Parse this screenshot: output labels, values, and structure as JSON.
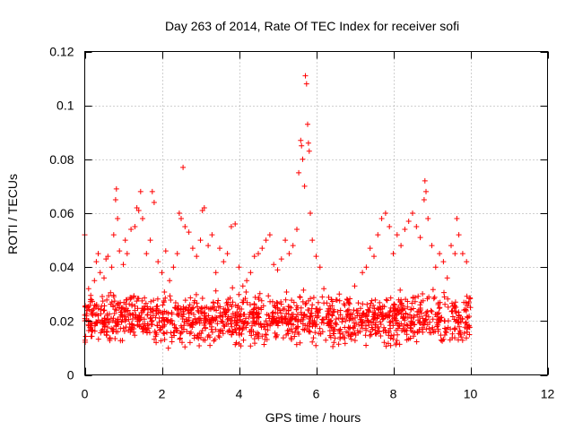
{
  "chart_data": {
    "type": "scatter",
    "title": "Day 263 of 2014, Rate Of TEC Index for receiver sofi",
    "xlabel": "GPS time / hours",
    "ylabel": "ROTI / TECUs",
    "xlim": [
      0,
      12
    ],
    "ylim": [
      0,
      0.12
    ],
    "x_ticks": [
      0,
      2,
      4,
      6,
      8,
      10,
      12
    ],
    "x_tick_labels": [
      "0",
      "2",
      "4",
      "6",
      "8",
      "10",
      "12"
    ],
    "y_ticks": [
      0,
      0.02,
      0.04,
      0.06,
      0.08,
      0.1,
      0.12
    ],
    "y_tick_labels": [
      "0",
      "0.02",
      "0.04",
      "0.06",
      "0.08",
      "0.1",
      "0.12"
    ],
    "grid": true,
    "marker": "+",
    "color": "#ff0000",
    "dense_band": {
      "x_range": [
        0,
        10
      ],
      "y_typical": [
        0.008,
        0.035
      ]
    },
    "series": [
      {
        "name": "ROTI",
        "points": [
          [
            0.0,
            0.052
          ],
          [
            0.05,
            0.025
          ],
          [
            0.1,
            0.032
          ],
          [
            0.15,
            0.028
          ],
          [
            0.2,
            0.024
          ],
          [
            0.25,
            0.035
          ],
          [
            0.3,
            0.042
          ],
          [
            0.35,
            0.045
          ],
          [
            0.4,
            0.038
          ],
          [
            0.5,
            0.036
          ],
          [
            0.55,
            0.043
          ],
          [
            0.6,
            0.044
          ],
          [
            0.7,
            0.04
          ],
          [
            0.75,
            0.052
          ],
          [
            0.8,
            0.065
          ],
          [
            0.82,
            0.069
          ],
          [
            0.85,
            0.058
          ],
          [
            0.9,
            0.046
          ],
          [
            1.0,
            0.041
          ],
          [
            1.05,
            0.05
          ],
          [
            1.1,
            0.045
          ],
          [
            1.2,
            0.054
          ],
          [
            1.3,
            0.055
          ],
          [
            1.35,
            0.062
          ],
          [
            1.4,
            0.061
          ],
          [
            1.45,
            0.068
          ],
          [
            1.5,
            0.058
          ],
          [
            1.6,
            0.045
          ],
          [
            1.7,
            0.05
          ],
          [
            1.75,
            0.068
          ],
          [
            1.8,
            0.064
          ],
          [
            1.9,
            0.042
          ],
          [
            2.0,
            0.038
          ],
          [
            2.1,
            0.046
          ],
          [
            2.2,
            0.035
          ],
          [
            2.3,
            0.04
          ],
          [
            2.4,
            0.045
          ],
          [
            2.45,
            0.06
          ],
          [
            2.5,
            0.058
          ],
          [
            2.55,
            0.077
          ],
          [
            2.6,
            0.055
          ],
          [
            2.7,
            0.053
          ],
          [
            2.8,
            0.047
          ],
          [
            2.9,
            0.044
          ],
          [
            3.0,
            0.05
          ],
          [
            3.05,
            0.061
          ],
          [
            3.1,
            0.062
          ],
          [
            3.2,
            0.048
          ],
          [
            3.3,
            0.052
          ],
          [
            3.4,
            0.038
          ],
          [
            3.5,
            0.047
          ],
          [
            3.6,
            0.042
          ],
          [
            3.7,
            0.045
          ],
          [
            3.8,
            0.055
          ],
          [
            3.9,
            0.056
          ],
          [
            4.0,
            0.04
          ],
          [
            4.1,
            0.033
          ],
          [
            4.2,
            0.035
          ],
          [
            4.3,
            0.038
          ],
          [
            4.4,
            0.044
          ],
          [
            4.5,
            0.045
          ],
          [
            4.6,
            0.047
          ],
          [
            4.7,
            0.05
          ],
          [
            4.8,
            0.052
          ],
          [
            4.9,
            0.041
          ],
          [
            5.0,
            0.039
          ],
          [
            5.1,
            0.043
          ],
          [
            5.2,
            0.05
          ],
          [
            5.3,
            0.045
          ],
          [
            5.4,
            0.048
          ],
          [
            5.5,
            0.054
          ],
          [
            5.55,
            0.075
          ],
          [
            5.6,
            0.087
          ],
          [
            5.62,
            0.085
          ],
          [
            5.65,
            0.08
          ],
          [
            5.7,
            0.07
          ],
          [
            5.72,
            0.111
          ],
          [
            5.75,
            0.108
          ],
          [
            5.78,
            0.093
          ],
          [
            5.8,
            0.086
          ],
          [
            5.82,
            0.083
          ],
          [
            5.85,
            0.06
          ],
          [
            5.9,
            0.05
          ],
          [
            6.0,
            0.044
          ],
          [
            6.1,
            0.04
          ],
          [
            6.2,
            0.032
          ],
          [
            6.4,
            0.028
          ],
          [
            6.6,
            0.03
          ],
          [
            6.8,
            0.028
          ],
          [
            7.0,
            0.033
          ],
          [
            7.2,
            0.038
          ],
          [
            7.3,
            0.04
          ],
          [
            7.4,
            0.047
          ],
          [
            7.5,
            0.044
          ],
          [
            7.6,
            0.052
          ],
          [
            7.7,
            0.058
          ],
          [
            7.8,
            0.06
          ],
          [
            7.9,
            0.055
          ],
          [
            8.0,
            0.045
          ],
          [
            8.1,
            0.052
          ],
          [
            8.2,
            0.048
          ],
          [
            8.3,
            0.054
          ],
          [
            8.4,
            0.057
          ],
          [
            8.5,
            0.06
          ],
          [
            8.6,
            0.055
          ],
          [
            8.7,
            0.051
          ],
          [
            8.8,
            0.065
          ],
          [
            8.82,
            0.072
          ],
          [
            8.85,
            0.068
          ],
          [
            8.9,
            0.058
          ],
          [
            9.0,
            0.048
          ],
          [
            9.1,
            0.04
          ],
          [
            9.2,
            0.045
          ],
          [
            9.3,
            0.042
          ],
          [
            9.4,
            0.036
          ],
          [
            9.5,
            0.048
          ],
          [
            9.6,
            0.045
          ],
          [
            9.65,
            0.058
          ],
          [
            9.7,
            0.052
          ],
          [
            9.8,
            0.045
          ],
          [
            9.9,
            0.042
          ],
          [
            10.0,
            0.025
          ]
        ]
      }
    ]
  }
}
